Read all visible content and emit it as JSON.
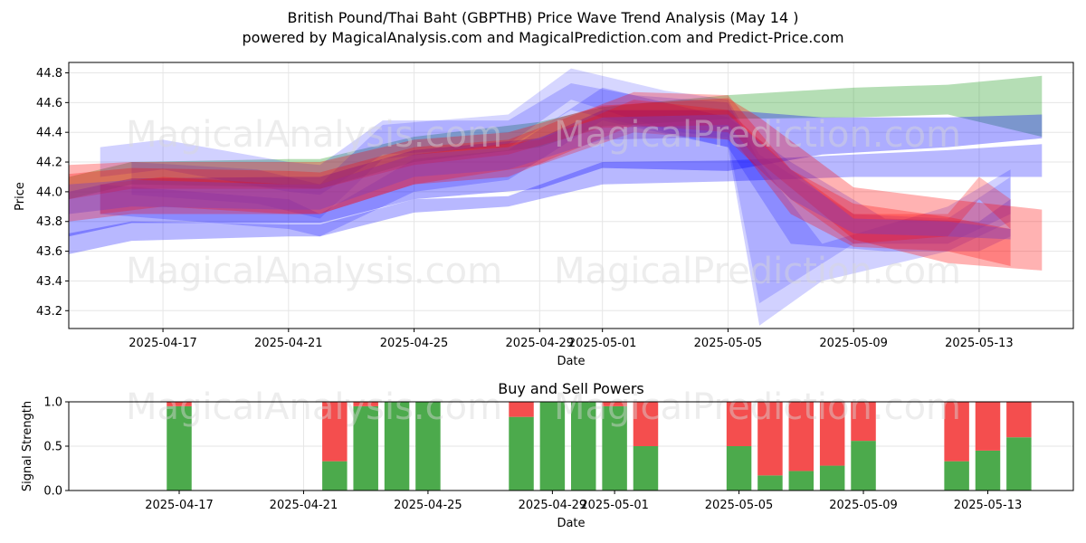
{
  "title": "British Pound/Thai Baht (GBPTHB) Price Wave Trend Analysis (May 14 )",
  "subtitle": "powered by MagicalAnalysis.com and MagicalPrediction.com and Predict-Price.com",
  "watermarks": [
    "MagicalAnalysis.com",
    "MagicalPrediction.com"
  ],
  "chart_data": [
    {
      "type": "area",
      "xlabel": "Date",
      "ylabel": "Price",
      "x_range": [
        "2025-04-14",
        "2025-05-16"
      ],
      "ylim": [
        43.08,
        44.87
      ],
      "y_ticks": [
        43.2,
        43.4,
        43.6,
        43.8,
        44.0,
        44.2,
        44.4,
        44.6,
        44.8
      ],
      "x_ticks": [
        "2025-04-17",
        "2025-04-21",
        "2025-04-25",
        "2025-04-29",
        "2025-05-01",
        "2025-05-05",
        "2025-05-09",
        "2025-05-13"
      ],
      "grid": true,
      "colors": {
        "green": "#2ca02c",
        "blue": "#0000ff",
        "red": "#ff0000",
        "purple": "#7a3fbf"
      },
      "bands": [
        {
          "color": "green",
          "opacity": 0.35,
          "x": [
            "2025-04-14",
            "2025-04-16",
            "2025-04-21",
            "2025-04-22",
            "2025-04-25",
            "2025-04-29",
            "2025-05-01",
            "2025-05-05",
            "2025-05-09",
            "2025-05-12",
            "2025-05-15"
          ],
          "upper": [
            44.1,
            44.2,
            44.22,
            44.22,
            44.37,
            44.47,
            44.57,
            44.65,
            44.7,
            44.72,
            44.78
          ],
          "lower": [
            43.95,
            44.05,
            44.03,
            44.02,
            44.2,
            44.3,
            44.44,
            44.49,
            44.5,
            44.52,
            44.37
          ]
        },
        {
          "color": "blue",
          "opacity": 0.32,
          "x": [
            "2025-04-14",
            "2025-04-16",
            "2025-04-21",
            "2025-04-22",
            "2025-04-25",
            "2025-04-29",
            "2025-05-01",
            "2025-05-05",
            "2025-05-08",
            "2025-05-12",
            "2025-05-15"
          ],
          "upper": [
            44.0,
            44.09,
            44.1,
            44.1,
            44.28,
            44.36,
            44.55,
            44.55,
            44.5,
            44.5,
            44.52
          ],
          "lower": [
            43.7,
            43.79,
            43.79,
            43.79,
            43.95,
            44.02,
            44.16,
            44.14,
            44.25,
            44.3,
            44.36
          ]
        },
        {
          "color": "blue",
          "opacity": 0.28,
          "x": [
            "2025-04-14",
            "2025-04-16",
            "2025-04-21",
            "2025-04-22",
            "2025-04-25",
            "2025-04-28",
            "2025-05-01",
            "2025-05-05",
            "2025-05-09",
            "2025-05-12",
            "2025-05-15"
          ],
          "upper": [
            43.72,
            43.8,
            43.78,
            43.78,
            43.95,
            43.97,
            44.2,
            44.21,
            44.25,
            44.28,
            44.32
          ],
          "lower": [
            43.58,
            43.67,
            43.7,
            43.7,
            43.86,
            43.9,
            44.05,
            44.07,
            44.1,
            44.1,
            44.1
          ]
        },
        {
          "color": "blue",
          "opacity": 0.18,
          "x": [
            "2025-04-15",
            "2025-04-17",
            "2025-04-21",
            "2025-04-22",
            "2025-04-24",
            "2025-04-28",
            "2025-04-30",
            "2025-05-02",
            "2025-05-05",
            "2025-05-06",
            "2025-05-08",
            "2025-05-12",
            "2025-05-14"
          ],
          "upper": [
            44.3,
            44.35,
            44.2,
            44.18,
            44.48,
            44.48,
            44.73,
            44.65,
            44.6,
            44.2,
            43.65,
            43.9,
            44.15
          ],
          "lower": [
            44.1,
            44.15,
            44.0,
            43.98,
            44.25,
            44.3,
            44.55,
            44.45,
            44.3,
            43.1,
            43.4,
            43.6,
            43.8
          ]
        },
        {
          "color": "blue",
          "opacity": 0.16,
          "x": [
            "2025-04-16",
            "2025-04-20",
            "2025-04-22",
            "2025-04-24",
            "2025-04-28",
            "2025-04-30",
            "2025-05-03",
            "2025-05-05",
            "2025-05-06",
            "2025-05-09",
            "2025-05-12",
            "2025-05-14"
          ],
          "upper": [
            44.2,
            44.15,
            44.05,
            44.45,
            44.52,
            44.83,
            44.68,
            44.62,
            44.25,
            43.85,
            43.82,
            44.1
          ],
          "lower": [
            43.98,
            43.92,
            43.82,
            44.22,
            44.32,
            44.62,
            44.42,
            44.35,
            43.25,
            43.65,
            43.65,
            43.85
          ]
        },
        {
          "color": "blue",
          "opacity": 0.2,
          "x": [
            "2025-04-15",
            "2025-04-18",
            "2025-04-21",
            "2025-04-22",
            "2025-04-25",
            "2025-04-28",
            "2025-05-01",
            "2025-05-05",
            "2025-05-07",
            "2025-05-10",
            "2025-05-13",
            "2025-05-14"
          ],
          "upper": [
            44.05,
            44.0,
            43.95,
            43.85,
            44.22,
            44.28,
            44.7,
            44.5,
            44.2,
            43.82,
            43.8,
            43.95
          ],
          "lower": [
            43.85,
            43.8,
            43.75,
            43.7,
            44.0,
            44.08,
            44.48,
            44.3,
            43.65,
            43.6,
            43.6,
            43.7
          ]
        },
        {
          "color": "red",
          "opacity": 0.3,
          "x": [
            "2025-04-14",
            "2025-04-16",
            "2025-04-21",
            "2025-04-22",
            "2025-04-25",
            "2025-04-28",
            "2025-05-01",
            "2025-05-05",
            "2025-05-06",
            "2025-05-09",
            "2025-05-12",
            "2025-05-15"
          ],
          "upper": [
            44.18,
            44.2,
            44.2,
            44.2,
            44.35,
            44.4,
            44.58,
            44.63,
            44.5,
            44.03,
            43.95,
            43.88
          ],
          "lower": [
            43.95,
            44.02,
            44.02,
            44.02,
            44.18,
            44.25,
            44.43,
            44.45,
            44.2,
            43.68,
            43.52,
            43.47
          ]
        },
        {
          "color": "red",
          "opacity": 0.28,
          "x": [
            "2025-04-14",
            "2025-04-16",
            "2025-04-21",
            "2025-04-22",
            "2025-04-25",
            "2025-04-28",
            "2025-05-02",
            "2025-05-05",
            "2025-05-07",
            "2025-05-09",
            "2025-05-12",
            "2025-05-14"
          ],
          "upper": [
            44.12,
            44.16,
            44.14,
            44.13,
            44.3,
            44.35,
            44.67,
            44.65,
            44.15,
            43.92,
            43.83,
            43.75
          ],
          "lower": [
            43.8,
            43.85,
            43.85,
            43.85,
            44.05,
            44.1,
            44.45,
            44.4,
            43.85,
            43.63,
            43.6,
            43.5
          ]
        },
        {
          "color": "red",
          "opacity": 0.25,
          "x": [
            "2025-04-15",
            "2025-04-17",
            "2025-04-21",
            "2025-04-22",
            "2025-04-25",
            "2025-04-29",
            "2025-05-02",
            "2025-05-05",
            "2025-05-07",
            "2025-05-09",
            "2025-05-12",
            "2025-05-13",
            "2025-05-14"
          ],
          "upper": [
            44.05,
            44.1,
            44.05,
            44.05,
            44.25,
            44.35,
            44.62,
            44.55,
            44.15,
            43.85,
            43.85,
            44.1,
            43.95
          ],
          "lower": [
            43.85,
            43.9,
            43.85,
            43.85,
            44.05,
            44.18,
            44.4,
            44.35,
            43.95,
            43.65,
            43.7,
            43.95,
            43.75
          ]
        },
        {
          "color": "purple",
          "opacity": 0.4,
          "x": [
            "2025-04-14",
            "2025-04-16",
            "2025-04-21",
            "2025-04-22",
            "2025-04-25",
            "2025-04-28",
            "2025-05-01",
            "2025-05-05",
            "2025-05-07",
            "2025-05-09",
            "2025-05-12",
            "2025-05-14"
          ],
          "upper": [
            44.05,
            44.08,
            44.05,
            44.05,
            44.25,
            44.3,
            44.5,
            44.52,
            44.15,
            43.82,
            43.8,
            43.75
          ],
          "lower": [
            43.85,
            43.9,
            43.88,
            43.88,
            44.1,
            44.15,
            44.35,
            44.37,
            43.95,
            43.72,
            43.7,
            43.68
          ]
        }
      ]
    },
    {
      "type": "bar",
      "title": "Buy and Sell Powers",
      "xlabel": "Date",
      "ylabel": "Signal Strength",
      "ylim": [
        0,
        1
      ],
      "y_ticks": [
        "0.0",
        "0.5",
        "1.0"
      ],
      "x_ticks": [
        "2025-04-17",
        "2025-04-21",
        "2025-04-25",
        "2025-04-29",
        "2025-05-01",
        "2025-05-05",
        "2025-05-09",
        "2025-05-13"
      ],
      "colors": {
        "buy": "#4caa4c",
        "sell": "#f44e4e"
      },
      "dates": [
        "2025-04-17",
        "2025-04-22",
        "2025-04-23",
        "2025-04-24",
        "2025-04-25",
        "2025-04-28",
        "2025-04-29",
        "2025-04-30",
        "2025-05-01",
        "2025-05-02",
        "2025-05-05",
        "2025-05-06",
        "2025-05-07",
        "2025-05-08",
        "2025-05-09",
        "2025-05-12",
        "2025-05-13",
        "2025-05-14"
      ],
      "buy": [
        0.95,
        0.33,
        0.95,
        1.0,
        1.0,
        0.83,
        1.0,
        1.0,
        0.95,
        0.5,
        0.5,
        0.17,
        0.22,
        0.28,
        0.56,
        0.33,
        0.45,
        0.6
      ]
    }
  ]
}
